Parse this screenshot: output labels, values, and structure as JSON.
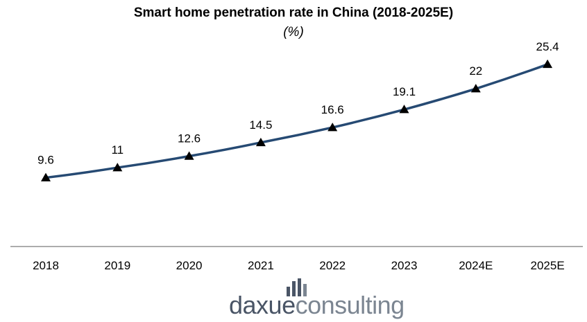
{
  "chart_data": {
    "type": "line",
    "title": "Smart home penetration rate in China (2018-2025E)",
    "subtitle": "(%)",
    "categories": [
      "2018",
      "2019",
      "2020",
      "2021",
      "2022",
      "2023",
      "2024E",
      "2025E"
    ],
    "series": [
      {
        "values": [
          9.6,
          11,
          12.6,
          14.5,
          16.6,
          19.1,
          22,
          25.4
        ],
        "color": "#264a73",
        "marker": "triangle"
      }
    ],
    "data_labels": [
      "9.6",
      "11",
      "12.6",
      "14.5",
      "16.6",
      "19.1",
      "22",
      "25.4"
    ],
    "xlabel": "",
    "ylabel": "",
    "ylim": [
      0,
      28
    ],
    "grid": false,
    "legend": "none",
    "y_axis_visible": false
  },
  "logo": {
    "part1": "daxue",
    "part2": "consulting",
    "icon": "bar-chart-icon",
    "color1": "#4a5566",
    "color2": "#7b8591"
  }
}
